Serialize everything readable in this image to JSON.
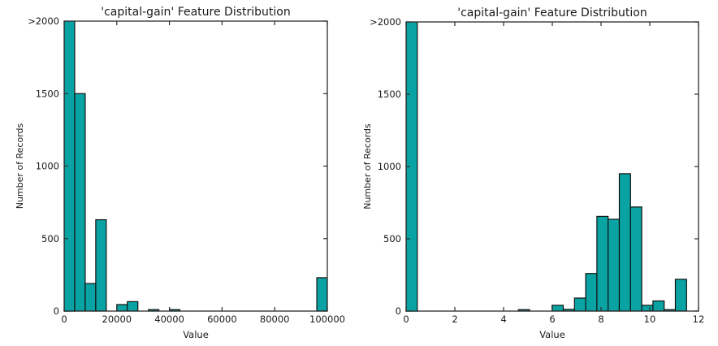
{
  "figure": {
    "background": "#ffffff",
    "text_color": "#1a1a1a",
    "axis_color": "#2b2b2b"
  },
  "chart_data": [
    {
      "type": "bar",
      "title": "'capital-gain' Feature Distribution",
      "xlabel": "Value",
      "ylabel": "Number of Records",
      "xlim": [
        0,
        100000
      ],
      "ylim": [
        0,
        2000
      ],
      "grid": false,
      "legend": "none",
      "bar_color": "#0aa3a3",
      "bar_edge_color": "#111111",
      "xticks": [
        {
          "v": 0,
          "label": "0"
        },
        {
          "v": 20000,
          "label": "20000"
        },
        {
          "v": 40000,
          "label": "40000"
        },
        {
          "v": 60000,
          "label": "60000"
        },
        {
          "v": 80000,
          "label": "80000"
        },
        {
          "v": 100000,
          "label": "100000"
        }
      ],
      "yticks": [
        {
          "v": 0,
          "label": "0"
        },
        {
          "v": 500,
          "label": "500"
        },
        {
          "v": 1000,
          "label": "1000"
        },
        {
          "v": 1500,
          "label": "1500"
        },
        {
          "v": 2000,
          "label": ">2000"
        }
      ],
      "overflow_label": ">2000",
      "bins": [
        {
          "x0": 0,
          "x1": 4000,
          "count": 2000,
          "clipped": true
        },
        {
          "x0": 4000,
          "x1": 8000,
          "count": 1500,
          "clipped": false
        },
        {
          "x0": 8000,
          "x1": 12000,
          "count": 190,
          "clipped": false
        },
        {
          "x0": 12000,
          "x1": 16000,
          "count": 630,
          "clipped": false
        },
        {
          "x0": 20000,
          "x1": 24000,
          "count": 45,
          "clipped": false
        },
        {
          "x0": 24000,
          "x1": 28000,
          "count": 65,
          "clipped": false
        },
        {
          "x0": 32000,
          "x1": 36000,
          "count": 10,
          "clipped": false
        },
        {
          "x0": 40000,
          "x1": 44000,
          "count": 10,
          "clipped": false
        },
        {
          "x0": 96000,
          "x1": 100000,
          "count": 230,
          "clipped": false
        }
      ]
    },
    {
      "type": "bar",
      "title": "'capital-gain' Feature Distribution",
      "xlabel": "Value",
      "ylabel": "Number of Records",
      "xlim": [
        0,
        12
      ],
      "ylim": [
        0,
        2000
      ],
      "grid": false,
      "legend": "none",
      "bar_color": "#0aa3a3",
      "bar_edge_color": "#111111",
      "xticks": [
        {
          "v": 0,
          "label": "0"
        },
        {
          "v": 2,
          "label": "2"
        },
        {
          "v": 4,
          "label": "4"
        },
        {
          "v": 6,
          "label": "6"
        },
        {
          "v": 8,
          "label": "8"
        },
        {
          "v": 10,
          "label": "10"
        },
        {
          "v": 12,
          "label": "12"
        }
      ],
      "yticks": [
        {
          "v": 0,
          "label": "0"
        },
        {
          "v": 500,
          "label": "500"
        },
        {
          "v": 1000,
          "label": "1000"
        },
        {
          "v": 1500,
          "label": "1500"
        },
        {
          "v": 2000,
          "label": ">2000"
        }
      ],
      "overflow_label": ">2000",
      "bins": [
        {
          "x0": 0.0,
          "x1": 0.46,
          "count": 2000,
          "clipped": true
        },
        {
          "x0": 4.61,
          "x1": 5.07,
          "count": 10,
          "clipped": false
        },
        {
          "x0": 5.99,
          "x1": 6.45,
          "count": 40,
          "clipped": false
        },
        {
          "x0": 6.45,
          "x1": 6.91,
          "count": 12,
          "clipped": false
        },
        {
          "x0": 6.91,
          "x1": 7.37,
          "count": 90,
          "clipped": false
        },
        {
          "x0": 7.37,
          "x1": 7.83,
          "count": 260,
          "clipped": false
        },
        {
          "x0": 7.83,
          "x1": 8.29,
          "count": 655,
          "clipped": false
        },
        {
          "x0": 8.29,
          "x1": 8.75,
          "count": 635,
          "clipped": false
        },
        {
          "x0": 8.75,
          "x1": 9.21,
          "count": 950,
          "clipped": false
        },
        {
          "x0": 9.21,
          "x1": 9.67,
          "count": 720,
          "clipped": false
        },
        {
          "x0": 9.67,
          "x1": 10.13,
          "count": 40,
          "clipped": false
        },
        {
          "x0": 10.13,
          "x1": 10.59,
          "count": 70,
          "clipped": false
        },
        {
          "x0": 10.59,
          "x1": 11.05,
          "count": 10,
          "clipped": false
        },
        {
          "x0": 11.05,
          "x1": 11.51,
          "count": 220,
          "clipped": false
        }
      ]
    }
  ]
}
